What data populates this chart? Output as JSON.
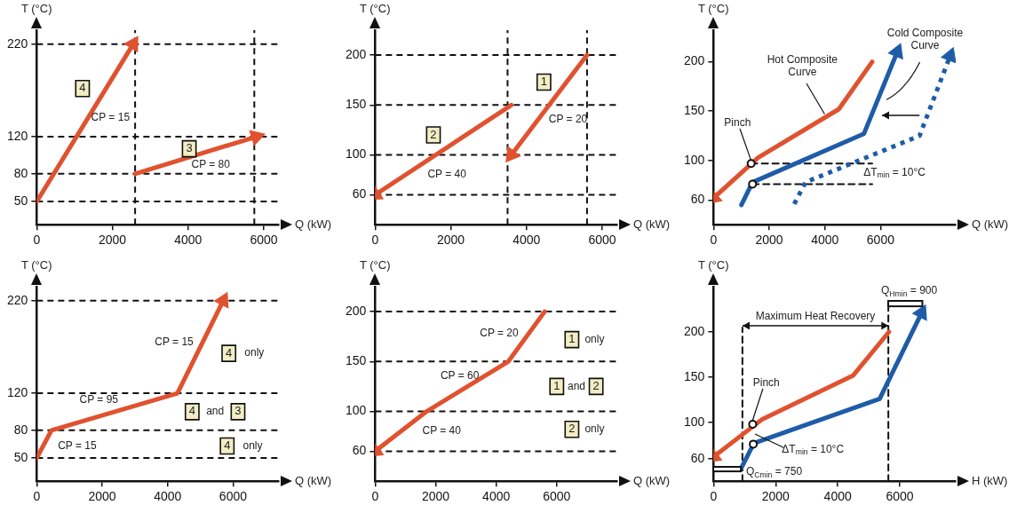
{
  "chart_data": [
    {
      "type": "line",
      "xlabel": "Q (kW)",
      "ylabel": "T (°C)",
      "xlim": [
        0,
        6400
      ],
      "ylim": [
        25,
        235
      ],
      "xticks": [
        0,
        2000,
        4000,
        6000
      ],
      "yticks": [
        50,
        80,
        120,
        220
      ],
      "series": [
        {
          "color": "#e0522f",
          "x": [
            0,
            2550
          ],
          "values": [
            50,
            220
          ]
        },
        {
          "color": "#e0522f",
          "x": [
            2600,
            5800
          ],
          "values": [
            80,
            120
          ]
        }
      ],
      "ref_lines": [
        {
          "axis": "y",
          "value": 220,
          "line_style": "dashed",
          "color": "#111111"
        },
        {
          "axis": "y",
          "value": 120,
          "line_style": "dashed",
          "color": "#111111"
        },
        {
          "axis": "y",
          "value": 80,
          "line_style": "dashed",
          "color": "#111111"
        },
        {
          "axis": "y",
          "value": 50,
          "line_style": "dashed",
          "color": "#111111"
        },
        {
          "axis": "x",
          "value": 2600,
          "line_style": "dashed",
          "color": "#111111"
        },
        {
          "axis": "x",
          "value": 5750,
          "line_style": "dashed",
          "color": "#111111"
        }
      ],
      "annotations": [
        "4",
        "CP = 15",
        "3",
        "CP = 80"
      ]
    },
    {
      "type": "line",
      "xlabel": "Q (kW)",
      "ylabel": "T (°C)",
      "xlim": [
        0,
        6400
      ],
      "ylim": [
        30,
        225
      ],
      "xticks": [
        0,
        2000,
        4000,
        6000
      ],
      "yticks": [
        60,
        100,
        150,
        200
      ],
      "series": [
        {
          "color": "#e0522f",
          "x": [
            5600,
            3600
          ],
          "values": [
            200,
            100
          ]
        },
        {
          "color": "#e0522f",
          "x": [
            3600,
            0
          ],
          "values": [
            150,
            60
          ]
        }
      ],
      "ref_lines": [
        {
          "axis": "y",
          "value": 200,
          "line_style": "dashed",
          "color": "#111111"
        },
        {
          "axis": "y",
          "value": 150,
          "line_style": "dashed",
          "color": "#111111"
        },
        {
          "axis": "y",
          "value": 100,
          "line_style": "dashed",
          "color": "#111111"
        },
        {
          "axis": "y",
          "value": 60,
          "line_style": "dashed",
          "color": "#111111"
        },
        {
          "axis": "x",
          "value": 3500,
          "line_style": "dashed",
          "color": "#111111"
        },
        {
          "axis": "x",
          "value": 5600,
          "line_style": "dashed",
          "color": "#111111"
        }
      ],
      "annotations": [
        "1",
        "CP = 20",
        "2",
        "CP = 40"
      ]
    },
    {
      "type": "line",
      "xlabel": "Q (kW)",
      "ylabel": "T (°C)",
      "xlim": [
        0,
        8700
      ],
      "ylim": [
        35,
        232
      ],
      "xticks": [
        0,
        2000,
        4000,
        6000
      ],
      "yticks": [
        60,
        100,
        150,
        200
      ],
      "series": [
        {
          "color": "#e0522f",
          "x": [
            5700,
            4500,
            1600,
            0
          ],
          "values": [
            200,
            152,
            103,
            62
          ]
        },
        {
          "color": "#1f5ca8",
          "x": [
            1000,
            1400,
            5400,
            6600
          ],
          "values": [
            55,
            78,
            127,
            210
          ]
        },
        {
          "color": "#1f5ca8",
          "line_style": "dotted",
          "x": [
            2900,
            3300,
            7400,
            8500
          ],
          "values": [
            56,
            78,
            125,
            206
          ]
        },
        {
          "color": "#111111",
          "line_style": "dashed",
          "x": [
            1350,
            5700
          ],
          "values": [
            97,
            97
          ]
        },
        {
          "color": "#111111",
          "line_style": "dashed",
          "x": [
            1400,
            5700
          ],
          "values": [
            76,
            76
          ]
        },
        {
          "type": "scatter",
          "marker": "circle",
          "color": "#111111",
          "x": [
            1350,
            1400
          ],
          "values": [
            97,
            76
          ]
        }
      ],
      "annotations": [
        {
          "text": "Hot Composite\nCurve",
          "x": 4000,
          "y": 144
        },
        "Cold Composite\nCurve",
        {
          "text": "Pinch",
          "x": 1350,
          "y": 97
        },
        "ΔT$_{min}$ = 10°C"
      ]
    },
    {
      "type": "line",
      "xlabel": "Q (kW)",
      "ylabel": "T (°C)",
      "xlim": [
        0,
        7400
      ],
      "ylim": [
        25,
        235
      ],
      "xticks": [
        0,
        2000,
        4000,
        6000
      ],
      "yticks": [
        50,
        80,
        120,
        220
      ],
      "series": [
        {
          "color": "#e0522f",
          "x": [
            0,
            450,
            4300,
            5700
          ],
          "values": [
            50,
            80,
            120,
            220
          ]
        }
      ],
      "ref_lines": [
        {
          "axis": "y",
          "value": 220,
          "line_style": "dashed",
          "color": "#111111"
        },
        {
          "axis": "y",
          "value": 120,
          "line_style": "dashed",
          "color": "#111111"
        },
        {
          "axis": "y",
          "value": 80,
          "line_style": "dashed",
          "color": "#111111"
        },
        {
          "axis": "y",
          "value": 50,
          "line_style": "dashed",
          "color": "#111111"
        }
      ],
      "annotations": [
        "CP = 15",
        "CP = 95",
        "CP = 15",
        "4",
        "only",
        "4",
        "and",
        "3",
        "4",
        "only"
      ]
    },
    {
      "type": "line",
      "xlabel": "Q (kW)",
      "ylabel": "T (°C)",
      "xlim": [
        0,
        8000
      ],
      "ylim": [
        30,
        225
      ],
      "xticks": [
        0,
        2000,
        4000,
        6000
      ],
      "yticks": [
        60,
        100,
        150,
        200
      ],
      "series": [
        {
          "color": "#e0522f",
          "x": [
            5600,
            4400,
            1700,
            0
          ],
          "values": [
            200,
            150,
            100,
            60
          ]
        }
      ],
      "ref_lines": [
        {
          "axis": "y",
          "value": 200,
          "line_style": "dashed",
          "color": "#111111"
        },
        {
          "axis": "y",
          "value": 150,
          "line_style": "dashed",
          "color": "#111111"
        },
        {
          "axis": "y",
          "value": 100,
          "line_style": "dashed",
          "color": "#111111"
        },
        {
          "axis": "y",
          "value": 60,
          "line_style": "dashed",
          "color": "#111111"
        }
      ],
      "annotations": [
        "CP = 20",
        "CP = 60",
        "CP = 40",
        "1",
        "only",
        "1",
        "and",
        "2",
        "2",
        "only"
      ]
    },
    {
      "type": "line",
      "xlabel": "H (kW)",
      "ylabel": "T (°C)",
      "xlim": [
        0,
        7800
      ],
      "ylim": [
        35,
        250
      ],
      "xticks": [
        0,
        2000,
        4000,
        6000
      ],
      "yticks": [
        60,
        100,
        150,
        200
      ],
      "series": [
        {
          "color": "#e0522f",
          "x": [
            5650,
            4500,
            1550,
            0
          ],
          "values": [
            200,
            152,
            103,
            62
          ]
        },
        {
          "color": "#1f5ca8",
          "x": [
            900,
            1300,
            5350,
            6700
          ],
          "values": [
            50,
            77,
            126,
            221
          ]
        },
        {
          "color": "#111111",
          "line_style": "dashed",
          "x": [
            930,
            930
          ],
          "values": [
            35,
            205
          ]
        },
        {
          "color": "#111111",
          "line_style": "dashed",
          "x": [
            5630,
            5630
          ],
          "values": [
            35,
            232
          ]
        },
        {
          "type": "scatter",
          "marker": "circle",
          "color": "#111111",
          "x": [
            1260,
            1280
          ],
          "values": [
            98,
            76
          ]
        }
      ],
      "annotations": [
        "Maximum Heat Recovery",
        "Q$_{Hmin}$ = 900",
        "Q$_{Cmin}$ = 750",
        {
          "text": "Pinch",
          "x": 1260,
          "y": 98
        },
        "ΔT$_{min}$ = 10°C"
      ]
    }
  ]
}
